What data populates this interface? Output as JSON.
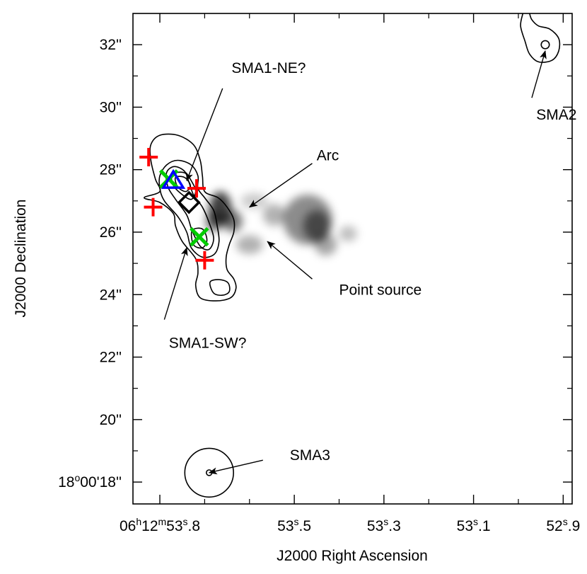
{
  "chart_data": {
    "type": "contour_map",
    "xlabel": "J2000 Right Ascension",
    "ylabel": "J2000 Declination",
    "xlim_sec": [
      53.86,
      52.88
    ],
    "ylim_arcsec": [
      17.3,
      33.0
    ],
    "x_ticks": [
      {
        "value": 53.8,
        "h": "06",
        "m": "12",
        "s": "53",
        "frac": ".8"
      },
      {
        "value": 53.5,
        "s": "53",
        "frac": ".5"
      },
      {
        "value": 53.3,
        "s": "53",
        "frac": ".3"
      },
      {
        "value": 53.1,
        "s": "53",
        "frac": ".1"
      },
      {
        "value": 52.9,
        "s": "52",
        "frac": ".9"
      }
    ],
    "x_minor_ticks": [
      53.7,
      53.6,
      53.4,
      53.2,
      53.0
    ],
    "y_ticks": [
      {
        "value": 32,
        "label": "32''"
      },
      {
        "value": 30,
        "label": "30''"
      },
      {
        "value": 28,
        "label": "28''"
      },
      {
        "value": 26,
        "label": "26''"
      },
      {
        "value": 24,
        "label": "24''"
      },
      {
        "value": 22,
        "label": "22''"
      },
      {
        "value": 20,
        "label": "20''"
      },
      {
        "value": 18,
        "label": "18°00'18''",
        "deg": "18",
        "rest": "00'18''"
      }
    ],
    "y_minor_ticks": [
      31,
      29,
      27,
      25,
      23,
      21,
      19
    ],
    "annotations": [
      {
        "text": "SMA1-NE?",
        "text_x": 53.64,
        "text_y": 31.1,
        "arrow_from": [
          53.66,
          30.6
        ],
        "arrow_to": [
          53.74,
          27.65
        ]
      },
      {
        "text": "Arc",
        "text_x": 53.45,
        "text_y": 28.3,
        "arrow_from": [
          53.46,
          28.2
        ],
        "arrow_to": [
          53.6,
          26.8
        ]
      },
      {
        "text": "Point source",
        "text_x": 53.4,
        "text_y": 24.0,
        "arrow_from": [
          53.46,
          24.5
        ],
        "arrow_to": [
          53.56,
          25.7
        ]
      },
      {
        "text": "SMA1-SW?",
        "text_x": 53.78,
        "text_y": 22.3,
        "arrow_from": [
          53.79,
          23.2
        ],
        "arrow_to": [
          53.74,
          25.5
        ]
      },
      {
        "text": "SMA2",
        "text_x": 52.96,
        "text_y": 29.6,
        "arrow_from": [
          52.97,
          30.3
        ],
        "arrow_to": [
          52.94,
          31.8
        ]
      },
      {
        "text": "SMA3",
        "text_x": 53.51,
        "text_y": 18.7,
        "arrow_from": [
          53.57,
          18.7
        ],
        "arrow_to": [
          53.69,
          18.3
        ]
      }
    ],
    "markers": {
      "red_plus": [
        [
          53.825,
          28.4
        ],
        [
          53.815,
          26.8
        ],
        [
          53.718,
          27.4
        ],
        [
          53.7,
          25.1
        ]
      ],
      "green_cross": [
        [
          53.78,
          27.7
        ],
        [
          53.712,
          25.85
        ]
      ],
      "blue_triangle": [
        [
          53.77,
          27.65
        ]
      ],
      "black_diamond": [
        [
          53.735,
          26.95
        ]
      ]
    },
    "colors": {
      "red_plus": "#ff0000",
      "green_cross": "#00cc00",
      "blue_triangle": "#0000ff",
      "black_diamond": "#000000"
    },
    "grey_emission": [
      {
        "x": 53.665,
        "y": 26.75,
        "rx": 0.025,
        "ry": 0.55,
        "opacity": 0.75
      },
      {
        "x": 53.68,
        "y": 26.35,
        "rx": 0.018,
        "ry": 0.35,
        "opacity": 0.55
      },
      {
        "x": 53.638,
        "y": 26.35,
        "rx": 0.022,
        "ry": 0.35,
        "opacity": 0.55
      },
      {
        "x": 53.6,
        "y": 25.6,
        "rx": 0.03,
        "ry": 0.3,
        "opacity": 0.3
      },
      {
        "x": 53.545,
        "y": 26.55,
        "rx": 0.025,
        "ry": 0.35,
        "opacity": 0.3
      },
      {
        "x": 53.47,
        "y": 26.4,
        "rx": 0.055,
        "ry": 0.8,
        "opacity": 0.45
      },
      {
        "x": 53.45,
        "y": 26.2,
        "rx": 0.03,
        "ry": 0.5,
        "opacity": 0.5
      },
      {
        "x": 53.43,
        "y": 25.6,
        "rx": 0.025,
        "ry": 0.35,
        "opacity": 0.35
      },
      {
        "x": 53.59,
        "y": 27.0,
        "rx": 0.03,
        "ry": 0.25,
        "opacity": 0.2
      },
      {
        "x": 53.38,
        "y": 25.95,
        "rx": 0.02,
        "ry": 0.25,
        "opacity": 0.25
      }
    ],
    "contours": [
      {
        "name": "sma1-outer",
        "closed": true,
        "points": [
          [
            53.8,
            27.3
          ],
          [
            53.835,
            27.1
          ],
          [
            53.8,
            26.95
          ],
          [
            53.77,
            26.6
          ],
          [
            53.765,
            26.2
          ],
          [
            53.75,
            25.7
          ],
          [
            53.72,
            25.15
          ],
          [
            53.715,
            24.7
          ],
          [
            53.72,
            24.3
          ],
          [
            53.71,
            23.9
          ],
          [
            53.675,
            23.8
          ],
          [
            53.642,
            23.9
          ],
          [
            53.63,
            24.2
          ],
          [
            53.635,
            24.5
          ],
          [
            53.65,
            24.8
          ],
          [
            53.652,
            25.2
          ],
          [
            53.645,
            25.6
          ],
          [
            53.635,
            26.0
          ],
          [
            53.635,
            26.4
          ],
          [
            53.65,
            26.8
          ],
          [
            53.67,
            27.1
          ],
          [
            53.7,
            27.3
          ],
          [
            53.705,
            27.8
          ],
          [
            53.71,
            28.3
          ],
          [
            53.725,
            28.8
          ],
          [
            53.76,
            29.1
          ],
          [
            53.8,
            29.1
          ],
          [
            53.82,
            28.8
          ],
          [
            53.82,
            28.3
          ],
          [
            53.81,
            27.7
          ]
        ]
      },
      {
        "name": "sma1-level2",
        "closed": true,
        "points": [
          [
            53.8,
            27.8
          ],
          [
            53.8,
            27.4
          ],
          [
            53.79,
            27.0
          ],
          [
            53.76,
            26.5
          ],
          [
            53.74,
            26.0
          ],
          [
            53.73,
            25.5
          ],
          [
            53.705,
            25.2
          ],
          [
            53.678,
            25.3
          ],
          [
            53.668,
            25.7
          ],
          [
            53.672,
            26.2
          ],
          [
            53.68,
            26.7
          ],
          [
            53.7,
            27.1
          ],
          [
            53.715,
            27.4
          ],
          [
            53.715,
            27.8
          ],
          [
            53.73,
            28.15
          ],
          [
            53.76,
            28.3
          ],
          [
            53.785,
            28.15
          ]
        ]
      },
      {
        "name": "sma1-level3",
        "closed": true,
        "points": [
          [
            53.785,
            27.9
          ],
          [
            53.782,
            27.45
          ],
          [
            53.765,
            27.05
          ],
          [
            53.74,
            26.55
          ],
          [
            53.728,
            26.05
          ],
          [
            53.71,
            25.55
          ],
          [
            53.69,
            25.45
          ],
          [
            53.68,
            25.8
          ],
          [
            53.69,
            26.3
          ],
          [
            53.705,
            26.8
          ],
          [
            53.725,
            27.2
          ],
          [
            53.735,
            27.6
          ],
          [
            53.745,
            27.95
          ],
          [
            53.768,
            28.1
          ]
        ]
      },
      {
        "name": "sma1-level4",
        "closed": true,
        "points": [
          [
            53.772,
            27.85
          ],
          [
            53.77,
            27.5
          ],
          [
            53.75,
            27.2
          ],
          [
            53.73,
            27.05
          ],
          [
            53.72,
            27.3
          ],
          [
            53.728,
            27.6
          ],
          [
            53.745,
            27.9
          ]
        ]
      },
      {
        "name": "sma1-level5",
        "closed": true,
        "points": [
          [
            53.765,
            27.75
          ],
          [
            53.76,
            27.45
          ],
          [
            53.742,
            27.3
          ],
          [
            53.732,
            27.5
          ],
          [
            53.745,
            27.75
          ]
        ]
      },
      {
        "name": "sma1-sw-level4",
        "closed": true,
        "points": [
          [
            53.728,
            26.05
          ],
          [
            53.725,
            25.6
          ],
          [
            53.705,
            25.5
          ],
          [
            53.695,
            25.75
          ],
          [
            53.705,
            26.1
          ]
        ]
      },
      {
        "name": "sma1-south-knot",
        "closed": true,
        "points": [
          [
            53.688,
            24.4
          ],
          [
            53.68,
            24.05
          ],
          [
            53.66,
            23.98
          ],
          [
            53.645,
            24.1
          ],
          [
            53.648,
            24.38
          ],
          [
            53.668,
            24.48
          ]
        ]
      },
      {
        "name": "sma2-outer",
        "closed": false,
        "points": [
          [
            52.99,
            33.0
          ],
          [
            52.995,
            32.6
          ],
          [
            52.985,
            32.1
          ],
          [
            52.975,
            31.7
          ],
          [
            52.955,
            31.45
          ],
          [
            52.925,
            31.5
          ],
          [
            52.91,
            31.8
          ],
          [
            52.91,
            32.2
          ],
          [
            52.93,
            32.5
          ],
          [
            52.955,
            32.6
          ],
          [
            52.97,
            32.8
          ],
          [
            52.975,
            33.0
          ]
        ]
      },
      {
        "name": "sma2-core",
        "type": "circle",
        "cx": 52.94,
        "cy": 32.0,
        "r_arcsec": 0.13
      },
      {
        "name": "sma3-outer",
        "type": "circle",
        "cx": 53.69,
        "cy": 18.3,
        "r_arcsec": 0.78
      },
      {
        "name": "sma3-core",
        "type": "circle",
        "cx": 53.69,
        "cy": 18.3,
        "r_arcsec": 0.09
      }
    ]
  }
}
